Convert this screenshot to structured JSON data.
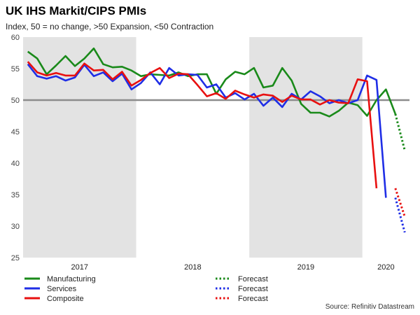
{
  "title": "UK IHS Markit/CIPS PMIs",
  "subtitle": "Index, 50 = no change, >50 Expansion, <50 Contraction",
  "source": "Source: Refinitiv Datastream",
  "chart_data": {
    "type": "line",
    "ylim": [
      25,
      60
    ],
    "yticks": [
      25,
      30,
      35,
      40,
      45,
      50,
      55,
      60
    ],
    "reference_line": 50,
    "x_start": "2017-01",
    "x_end": "2020-05",
    "years": [
      {
        "label": "2017",
        "shaded": true
      },
      {
        "label": "2018",
        "shaded": false
      },
      {
        "label": "2019",
        "shaded": true
      },
      {
        "label": "2020",
        "shaded": false
      }
    ],
    "series": [
      {
        "name": "Manufacturing",
        "color": "#1a8a1a",
        "style": "solid",
        "values": [
          57.7,
          56.6,
          54.1,
          55.5,
          57.0,
          55.4,
          56.6,
          58.2,
          55.7,
          55.2,
          55.3,
          54.7,
          53.8,
          54.1,
          54.0,
          53.9,
          54.4,
          53.8,
          54.1,
          54.1,
          51.0,
          53.3,
          54.5,
          54.1,
          55.1,
          52.0,
          52.3,
          55.1,
          53.1,
          49.4,
          48.0,
          48.0,
          47.4,
          48.3,
          49.6,
          49.2,
          47.5,
          50.0,
          51.7,
          47.8
        ]
      },
      {
        "name": "Services",
        "color": "#1f2ee6",
        "style": "solid",
        "values": [
          55.7,
          53.8,
          53.4,
          53.8,
          53.1,
          53.6,
          55.6,
          53.8,
          54.4,
          53.0,
          54.2,
          51.7,
          52.7,
          54.4,
          52.5,
          55.1,
          53.9,
          54.1,
          54.0,
          52.0,
          52.5,
          50.4,
          51.1,
          50.1,
          51.0,
          49.1,
          50.4,
          48.9,
          51.0,
          50.1,
          51.4,
          50.6,
          49.5,
          50.0,
          49.5,
          50.0,
          53.9,
          53.2,
          34.5
        ]
      },
      {
        "name": "Composite",
        "color": "#e81010",
        "style": "solid",
        "values": [
          56.1,
          54.4,
          53.9,
          54.3,
          53.9,
          53.9,
          55.8,
          54.7,
          54.8,
          53.3,
          54.5,
          52.3,
          53.2,
          54.3,
          55.1,
          53.5,
          54.2,
          54.1,
          52.4,
          50.6,
          51.1,
          50.2,
          51.5,
          50.9,
          50.4,
          50.9,
          50.7,
          49.7,
          50.7,
          50.1,
          50.1,
          49.3,
          50.0,
          49.6,
          49.5,
          53.3,
          53.0,
          36.0
        ]
      },
      {
        "name": "Forecast",
        "color": "#1a8a1a",
        "style": "dotted",
        "points": [
          {
            "x": "2020-04",
            "y": 47.8
          },
          {
            "x": "2020-05",
            "y": 42.0
          }
        ]
      },
      {
        "name": "Forecast",
        "color": "#1f2ee6",
        "style": "dotted",
        "points": [
          {
            "x": "2020-04",
            "y": 34.5
          },
          {
            "x": "2020-05",
            "y": 29.0
          }
        ]
      },
      {
        "name": "Forecast",
        "color": "#e81010",
        "style": "dotted",
        "points": [
          {
            "x": "2020-04",
            "y": 36.0
          },
          {
            "x": "2020-05",
            "y": 31.5
          }
        ]
      }
    ]
  }
}
